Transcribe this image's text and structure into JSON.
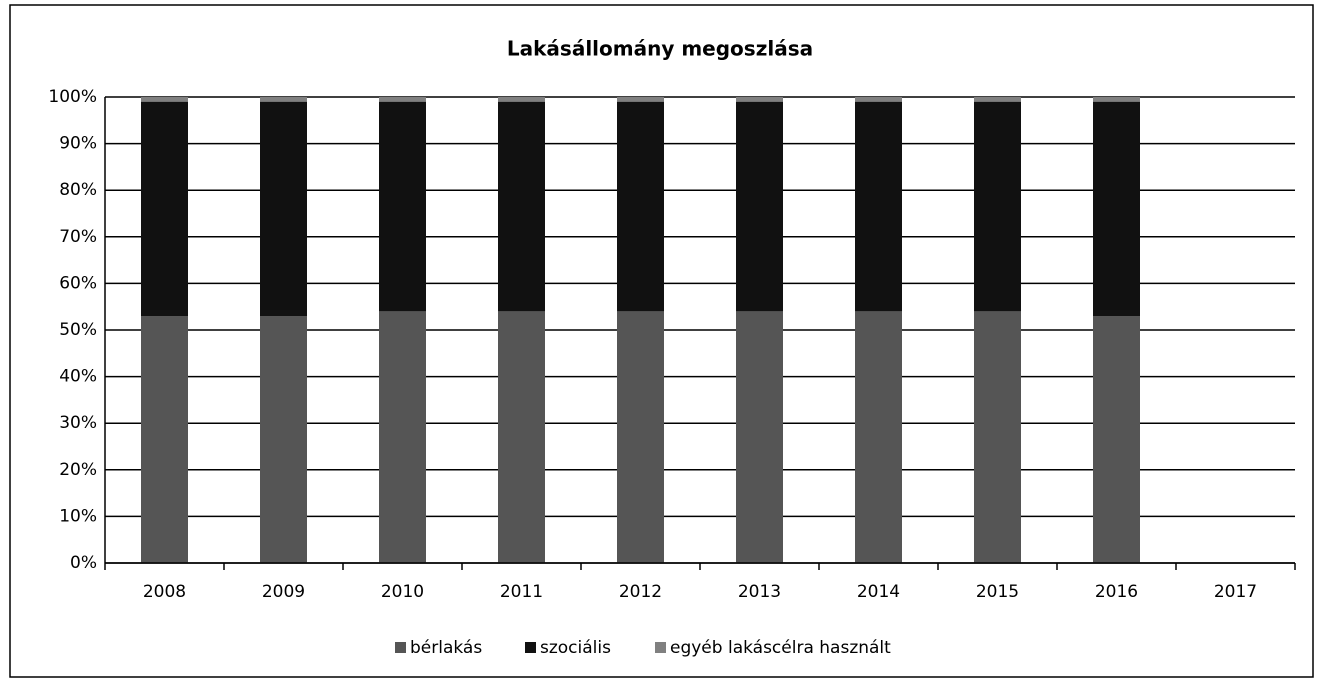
{
  "chart_data": {
    "type": "stacked_bar",
    "title": "Lakásállomány megoszlása",
    "categories": [
      "2008",
      "2009",
      "2010",
      "2011",
      "2012",
      "2013",
      "2014",
      "2015",
      "2016",
      "2017"
    ],
    "series": [
      {
        "name": "bérlakás",
        "color": "#555555",
        "values": [
          53,
          53,
          54,
          54,
          54,
          54,
          54,
          54,
          53,
          null
        ]
      },
      {
        "name": "szociális",
        "color": "#111111",
        "values": [
          46,
          46,
          45,
          45,
          45,
          45,
          45,
          45,
          46,
          null
        ]
      },
      {
        "name": "egyéb lakáscélra használt",
        "color": "#808080",
        "values": [
          1,
          1,
          1,
          1,
          1,
          1,
          1,
          1,
          1,
          null
        ]
      }
    ],
    "ylim": [
      0,
      100
    ],
    "yticks": [
      {
        "value": 0,
        "label": "0%"
      },
      {
        "value": 10,
        "label": "10%"
      },
      {
        "value": 20,
        "label": "20%"
      },
      {
        "value": 30,
        "label": "30%"
      },
      {
        "value": 40,
        "label": "40%"
      },
      {
        "value": 50,
        "label": "50%"
      },
      {
        "value": 60,
        "label": "60%"
      },
      {
        "value": 70,
        "label": "70%"
      },
      {
        "value": 80,
        "label": "80%"
      },
      {
        "value": 90,
        "label": "90%"
      },
      {
        "value": 100,
        "label": "100%"
      }
    ],
    "grid": true,
    "legend": "bottom"
  }
}
